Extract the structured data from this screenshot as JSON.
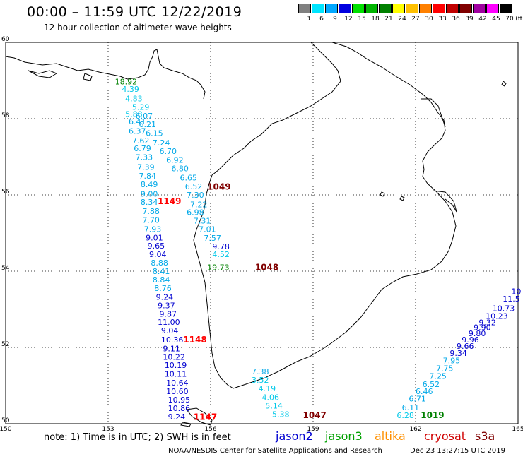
{
  "header": {
    "title": "00:00 – 11:59 UTC 12/22/2019",
    "subtitle": "12 hour collection of altimeter wave heights"
  },
  "legend": {
    "unit": "(ft)",
    "bins": [
      {
        "label": "3",
        "color": "#808080"
      },
      {
        "label": "6",
        "color": "#00e5ff"
      },
      {
        "label": "9",
        "color": "#00a8ff"
      },
      {
        "label": "12",
        "color": "#0000e0"
      },
      {
        "label": "15",
        "color": "#00e000"
      },
      {
        "label": "18",
        "color": "#00b400"
      },
      {
        "label": "21",
        "color": "#008000"
      },
      {
        "label": "24",
        "color": "#ffff00"
      },
      {
        "label": "27",
        "color": "#ffc000"
      },
      {
        "label": "30",
        "color": "#ff8000"
      },
      {
        "label": "33",
        "color": "#ff0000"
      },
      {
        "label": "36",
        "color": "#c00000"
      },
      {
        "label": "39",
        "color": "#800000"
      },
      {
        "label": "42",
        "color": "#a000a0"
      },
      {
        "label": "45",
        "color": "#ff00ff"
      },
      {
        "label": "70",
        "color": "#000000"
      }
    ]
  },
  "map": {
    "lon_range": [
      150,
      165
    ],
    "lat_range": [
      50,
      60
    ],
    "lon_ticks": [
      "150",
      "153",
      "156",
      "159",
      "162",
      "165"
    ],
    "lat_ticks": [
      "60",
      "58",
      "56",
      "54",
      "52",
      "50"
    ],
    "observations": [
      {
        "v": "18.92",
        "lon": 153.2,
        "lat": 58.9,
        "c": "#008000"
      },
      {
        "v": "4.39",
        "lon": 153.4,
        "lat": 58.7,
        "c": "#00c8e8"
      },
      {
        "v": "4.83",
        "lon": 153.5,
        "lat": 58.45,
        "c": "#00c8e8"
      },
      {
        "v": "5.29",
        "lon": 153.7,
        "lat": 58.23,
        "c": "#00c8e8"
      },
      {
        "v": "5.88",
        "lon": 153.5,
        "lat": 58.05,
        "c": "#00c8e8"
      },
      {
        "v": "6.07",
        "lon": 153.8,
        "lat": 58.0,
        "c": "#00a8e8"
      },
      {
        "v": "6.41",
        "lon": 153.6,
        "lat": 57.85,
        "c": "#00a8e8"
      },
      {
        "v": "6.21",
        "lon": 153.9,
        "lat": 57.78,
        "c": "#00a8e8"
      },
      {
        "v": "6.37",
        "lon": 153.6,
        "lat": 57.6,
        "c": "#00a8e8"
      },
      {
        "v": "6.15",
        "lon": 154.1,
        "lat": 57.55,
        "c": "#00a8e8"
      },
      {
        "v": "7.62",
        "lon": 153.7,
        "lat": 57.35,
        "c": "#00a8e8"
      },
      {
        "v": "7.24",
        "lon": 154.3,
        "lat": 57.3,
        "c": "#00a8e8"
      },
      {
        "v": "6.79",
        "lon": 153.75,
        "lat": 57.15,
        "c": "#00a8e8"
      },
      {
        "v": "6.70",
        "lon": 154.5,
        "lat": 57.07,
        "c": "#00a8e8"
      },
      {
        "v": "7.33",
        "lon": 153.8,
        "lat": 56.92,
        "c": "#00a8e8"
      },
      {
        "v": "6.92",
        "lon": 154.7,
        "lat": 56.84,
        "c": "#00a8e8"
      },
      {
        "v": "7.39",
        "lon": 153.85,
        "lat": 56.66,
        "c": "#00a8e8"
      },
      {
        "v": "6.80",
        "lon": 154.85,
        "lat": 56.62,
        "c": "#00a8e8"
      },
      {
        "v": "7.84",
        "lon": 153.9,
        "lat": 56.43,
        "c": "#00a8e8"
      },
      {
        "v": "6.65",
        "lon": 155.1,
        "lat": 56.38,
        "c": "#00a8e8"
      },
      {
        "v": "8.49",
        "lon": 153.95,
        "lat": 56.2,
        "c": "#00a8e8"
      },
      {
        "v": "6.52",
        "lon": 155.25,
        "lat": 56.15,
        "c": "#00a8e8"
      },
      {
        "v": "9.00",
        "lon": 153.95,
        "lat": 55.95,
        "c": "#00a8e8"
      },
      {
        "v": "1049",
        "lon": 155.9,
        "lat": 56.14,
        "c": "#800000",
        "b": 1
      },
      {
        "v": "7.30",
        "lon": 155.3,
        "lat": 55.93,
        "c": "#00a8e8"
      },
      {
        "v": "8.34",
        "lon": 153.95,
        "lat": 55.74,
        "c": "#00a8e8"
      },
      {
        "v": "1149",
        "lon": 154.45,
        "lat": 55.76,
        "c": "#ff0000",
        "b": 1
      },
      {
        "v": "7.22",
        "lon": 155.4,
        "lat": 55.68,
        "c": "#00a8e8"
      },
      {
        "v": "7.88",
        "lon": 154.0,
        "lat": 55.5,
        "c": "#00a8e8"
      },
      {
        "v": "6.98",
        "lon": 155.3,
        "lat": 55.47,
        "c": "#00a8e8"
      },
      {
        "v": "7.70",
        "lon": 154.0,
        "lat": 55.27,
        "c": "#00a8e8"
      },
      {
        "v": "7.31",
        "lon": 155.5,
        "lat": 55.25,
        "c": "#00a8e8"
      },
      {
        "v": "7.93",
        "lon": 154.05,
        "lat": 55.03,
        "c": "#00a8e8"
      },
      {
        "v": "7.01",
        "lon": 155.65,
        "lat": 55.03,
        "c": "#00a8e8"
      },
      {
        "v": "9.01",
        "lon": 154.1,
        "lat": 54.81,
        "c": "#0000d0"
      },
      {
        "v": "7.57",
        "lon": 155.8,
        "lat": 54.8,
        "c": "#00a8e8"
      },
      {
        "v": "9.65",
        "lon": 154.15,
        "lat": 54.59,
        "c": "#0000d0"
      },
      {
        "v": "9.78",
        "lon": 156.05,
        "lat": 54.57,
        "c": "#0000d0"
      },
      {
        "v": "9.04",
        "lon": 154.2,
        "lat": 54.37,
        "c": "#0000d0"
      },
      {
        "v": "4.52",
        "lon": 156.05,
        "lat": 54.37,
        "c": "#00c8e8"
      },
      {
        "v": "8.88",
        "lon": 154.25,
        "lat": 54.15,
        "c": "#00a8e8"
      },
      {
        "v": "19.73",
        "lon": 155.9,
        "lat": 54.03,
        "c": "#008000"
      },
      {
        "v": "1048",
        "lon": 157.3,
        "lat": 54.03,
        "c": "#800000",
        "b": 1
      },
      {
        "v": "8.41",
        "lon": 154.3,
        "lat": 53.93,
        "c": "#00a8e8"
      },
      {
        "v": "8.84",
        "lon": 154.3,
        "lat": 53.7,
        "c": "#00a8e8"
      },
      {
        "v": "8.76",
        "lon": 154.35,
        "lat": 53.48,
        "c": "#00a8e8"
      },
      {
        "v": "9.24",
        "lon": 154.4,
        "lat": 53.25,
        "c": "#0000d0"
      },
      {
        "v": "9.37",
        "lon": 154.45,
        "lat": 53.03,
        "c": "#0000d0"
      },
      {
        "v": "9.87",
        "lon": 154.5,
        "lat": 52.81,
        "c": "#0000d0"
      },
      {
        "v": "11.00",
        "lon": 154.45,
        "lat": 52.59,
        "c": "#0000d0"
      },
      {
        "v": "9.04",
        "lon": 154.55,
        "lat": 52.37,
        "c": "#0000d0"
      },
      {
        "v": "10.36",
        "lon": 154.55,
        "lat": 52.13,
        "c": "#0000d0"
      },
      {
        "v": "1148",
        "lon": 155.2,
        "lat": 52.13,
        "c": "#ff0000",
        "b": 1
      },
      {
        "v": "9.11",
        "lon": 154.6,
        "lat": 51.9,
        "c": "#0000d0"
      },
      {
        "v": "10.22",
        "lon": 154.6,
        "lat": 51.68,
        "c": "#0000d0"
      },
      {
        "v": "10.19",
        "lon": 154.65,
        "lat": 51.46,
        "c": "#0000d0"
      },
      {
        "v": "10.11",
        "lon": 154.65,
        "lat": 51.23,
        "c": "#0000d0"
      },
      {
        "v": "10.64",
        "lon": 154.7,
        "lat": 51.0,
        "c": "#0000d0"
      },
      {
        "v": "10.60",
        "lon": 154.7,
        "lat": 50.78,
        "c": "#0000d0"
      },
      {
        "v": "10.95",
        "lon": 154.75,
        "lat": 50.56,
        "c": "#0000d0"
      },
      {
        "v": "10.86",
        "lon": 154.75,
        "lat": 50.33,
        "c": "#0000d0"
      },
      {
        "v": "9.24",
        "lon": 154.75,
        "lat": 50.11,
        "c": "#0000d0"
      },
      {
        "v": "1147",
        "lon": 155.5,
        "lat": 50.1,
        "c": "#ff0000",
        "b": 1
      },
      {
        "v": "7.38",
        "lon": 157.2,
        "lat": 51.3,
        "c": "#00a8e8"
      },
      {
        "v": "3.52",
        "lon": 157.2,
        "lat": 51.07,
        "c": "#00c8e8"
      },
      {
        "v": "4.19",
        "lon": 157.4,
        "lat": 50.85,
        "c": "#00c8e8"
      },
      {
        "v": "4.06",
        "lon": 157.5,
        "lat": 50.62,
        "c": "#00c8e8"
      },
      {
        "v": "5.14",
        "lon": 157.6,
        "lat": 50.4,
        "c": "#00c8e8"
      },
      {
        "v": "5.38",
        "lon": 157.8,
        "lat": 50.18,
        "c": "#00c8e8"
      },
      {
        "v": "1047",
        "lon": 158.7,
        "lat": 50.15,
        "c": "#800000",
        "b": 1
      },
      {
        "v": "6.28",
        "lon": 161.45,
        "lat": 50.15,
        "c": "#00c8e8"
      },
      {
        "v": "6.11",
        "lon": 161.6,
        "lat": 50.35,
        "c": "#00a8e8"
      },
      {
        "v": "1019",
        "lon": 162.15,
        "lat": 50.15,
        "c": "#008000",
        "b": 1
      },
      {
        "v": "6.71",
        "lon": 161.8,
        "lat": 50.58,
        "c": "#00a8e8"
      },
      {
        "v": "6.46",
        "lon": 162.0,
        "lat": 50.78,
        "c": "#00a8e8"
      },
      {
        "v": "6.52",
        "lon": 162.2,
        "lat": 50.96,
        "c": "#00a8e8"
      },
      {
        "v": "7.25",
        "lon": 162.4,
        "lat": 51.18,
        "c": "#00a8e8"
      },
      {
        "v": "7.75",
        "lon": 162.6,
        "lat": 51.38,
        "c": "#00a8e8"
      },
      {
        "v": "7.95",
        "lon": 162.8,
        "lat": 51.58,
        "c": "#00a8e8"
      },
      {
        "v": "9.34",
        "lon": 163.0,
        "lat": 51.78,
        "c": "#0000d0"
      },
      {
        "v": "9.66",
        "lon": 163.2,
        "lat": 51.96,
        "c": "#0000d0"
      },
      {
        "v": "9.96",
        "lon": 163.35,
        "lat": 52.13,
        "c": "#0000d0"
      },
      {
        "v": "9.80",
        "lon": 163.55,
        "lat": 52.3,
        "c": "#0000d0"
      },
      {
        "v": "9.90",
        "lon": 163.7,
        "lat": 52.45,
        "c": "#0000d0"
      },
      {
        "v": "9.32",
        "lon": 163.85,
        "lat": 52.58,
        "c": "#0000d0"
      },
      {
        "v": "10.23",
        "lon": 164.05,
        "lat": 52.75,
        "c": "#0000d0"
      },
      {
        "v": "10.73",
        "lon": 164.25,
        "lat": 52.95,
        "c": "#0000d0"
      },
      {
        "v": "11.5",
        "lon": 164.55,
        "lat": 53.2,
        "c": "#0000d0"
      },
      {
        "v": "10",
        "lon": 164.8,
        "lat": 53.4,
        "c": "#0000d0"
      }
    ]
  },
  "footer": {
    "note": "note: 1) Time is in UTC; 2) SWH is in feet",
    "satellites": [
      {
        "name": "jason2",
        "color": "#0000d0",
        "x": 390
      },
      {
        "name": "jason3",
        "color": "#00a000",
        "x": 460
      },
      {
        "name": "altika",
        "color": "#ff9000",
        "x": 530
      },
      {
        "name": "cryosat",
        "color": "#d00000",
        "x": 600
      },
      {
        "name": "s3a",
        "color": "#800000",
        "x": 672
      }
    ],
    "credit": "NOAA/NESDIS Center for Satellite Applications and Research",
    "timestamp": "Dec 23 13:27:15 UTC 2019"
  }
}
